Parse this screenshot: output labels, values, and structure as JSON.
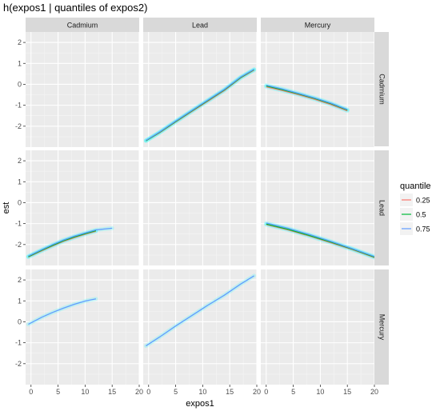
{
  "chart_data": {
    "type": "line",
    "title": "h(expos1 | quantiles of expos2)",
    "xlabel": "expos1",
    "ylabel": "est",
    "xlim": [
      -1,
      20
    ],
    "ylim": [
      -3,
      2.5
    ],
    "x_ticks": [
      0,
      5,
      10,
      15,
      20
    ],
    "y_ticks": [
      -2,
      -1,
      0,
      1,
      2
    ],
    "grid": true,
    "legend": {
      "title": "quantile",
      "position": "right",
      "entries": [
        {
          "label": "0.25",
          "color": "#F8766D"
        },
        {
          "label": "0.5",
          "color": "#00BA38"
        },
        {
          "label": "0.75",
          "color": "#619CFF"
        }
      ]
    },
    "col_labels": [
      "Cadmium",
      "Lead",
      "Mercury"
    ],
    "row_labels": [
      "Cadmium",
      "Lead",
      "Mercury"
    ],
    "ribbon_color": "#00FFFF",
    "panels": [
      {
        "row": 0,
        "col": 0,
        "series": []
      },
      {
        "row": 0,
        "col": 1,
        "series": [
          {
            "quantile": "0.25",
            "x": [
              -0.5,
              2,
              5,
              8,
              11,
              14,
              17,
              19.5
            ],
            "y": [
              -2.7,
              -2.32,
              -1.8,
              -1.3,
              -0.8,
              -0.3,
              0.3,
              0.68
            ]
          },
          {
            "quantile": "0.5",
            "x": [
              -0.5,
              2,
              5,
              8,
              11,
              14,
              17,
              19.5
            ],
            "y": [
              -2.7,
              -2.3,
              -1.78,
              -1.27,
              -0.77,
              -0.27,
              0.32,
              0.7
            ]
          },
          {
            "quantile": "0.75",
            "x": [
              -0.5,
              2,
              5,
              8,
              11,
              14,
              17,
              19.5
            ],
            "y": [
              -2.68,
              -2.28,
              -1.75,
              -1.24,
              -0.74,
              -0.24,
              0.35,
              0.72
            ]
          }
        ]
      },
      {
        "row": 0,
        "col": 2,
        "series": [
          {
            "quantile": "0.25",
            "x": [
              0,
              3,
              6,
              9,
              12,
              15
            ],
            "y": [
              -0.12,
              -0.3,
              -0.5,
              -0.72,
              -0.97,
              -1.27
            ]
          },
          {
            "quantile": "0.5",
            "x": [
              0,
              3,
              6,
              9,
              12,
              15
            ],
            "y": [
              -0.08,
              -0.26,
              -0.46,
              -0.68,
              -0.93,
              -1.23
            ]
          },
          {
            "quantile": "0.75",
            "x": [
              0,
              3,
              6,
              9,
              12,
              15
            ],
            "y": [
              -0.04,
              -0.22,
              -0.43,
              -0.65,
              -0.9,
              -1.2
            ]
          }
        ]
      },
      {
        "row": 1,
        "col": 0,
        "series": [
          {
            "quantile": "0.25",
            "x": [
              -0.5,
              2,
              4,
              6,
              8,
              10,
              12
            ],
            "y": [
              -2.6,
              -2.3,
              -2.07,
              -1.85,
              -1.67,
              -1.51,
              -1.37
            ]
          },
          {
            "quantile": "0.5",
            "x": [
              -0.5,
              2,
              4,
              6,
              8,
              10,
              12
            ],
            "y": [
              -2.58,
              -2.27,
              -2.04,
              -1.82,
              -1.64,
              -1.48,
              -1.34
            ]
          },
          {
            "quantile": "0.75",
            "x": [
              -0.5,
              2,
              4,
              6,
              8,
              10,
              12,
              15
            ],
            "y": [
              -2.55,
              -2.24,
              -2.0,
              -1.78,
              -1.6,
              -1.44,
              -1.3,
              -1.22
            ]
          }
        ]
      },
      {
        "row": 1,
        "col": 1,
        "series": []
      },
      {
        "row": 1,
        "col": 2,
        "series": [
          {
            "quantile": "0.25",
            "x": [
              0,
              4,
              8,
              12,
              16,
              20
            ],
            "y": [
              -1.05,
              -1.3,
              -1.6,
              -1.92,
              -2.25,
              -2.62
            ]
          },
          {
            "quantile": "0.5",
            "x": [
              0,
              4,
              8,
              12,
              16,
              20
            ],
            "y": [
              -1.02,
              -1.27,
              -1.57,
              -1.89,
              -2.23,
              -2.6
            ]
          },
          {
            "quantile": "0.75",
            "x": [
              0,
              4,
              8,
              12,
              16,
              20
            ],
            "y": [
              -0.97,
              -1.22,
              -1.52,
              -1.85,
              -2.2,
              -2.57
            ]
          }
        ]
      },
      {
        "row": 2,
        "col": 0,
        "series": [
          {
            "quantile": "0.75",
            "x": [
              -0.5,
              2,
              4,
              6,
              8,
              10,
              12
            ],
            "y": [
              -0.12,
              0.22,
              0.45,
              0.65,
              0.84,
              0.99,
              1.1
            ]
          }
        ]
      },
      {
        "row": 2,
        "col": 1,
        "series": [
          {
            "quantile": "0.75",
            "x": [
              -0.5,
              2,
              5,
              8,
              11,
              14,
              17,
              19.5
            ],
            "y": [
              -1.15,
              -0.73,
              -0.2,
              0.3,
              0.8,
              1.27,
              1.8,
              2.2
            ]
          }
        ]
      },
      {
        "row": 2,
        "col": 2,
        "series": []
      }
    ]
  }
}
